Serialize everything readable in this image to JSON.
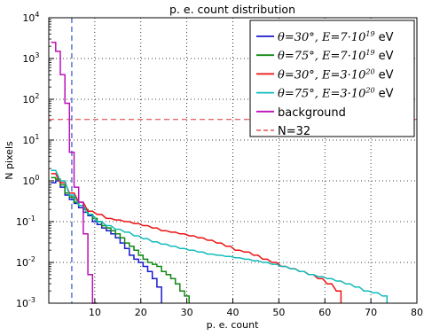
{
  "chart_data": {
    "type": "line",
    "title": "p. e. count distribution",
    "xlabel": "p. e. count",
    "ylabel": "N pixels",
    "xlim": [
      0,
      80
    ],
    "ylim_log10": [
      -3,
      4
    ],
    "y_scale": "log",
    "grid": true,
    "legend_position": "top-right",
    "x_ticks": [
      10,
      20,
      30,
      40,
      50,
      60,
      70,
      80
    ],
    "x_tick_labels": [
      "10",
      "20",
      "30",
      "40",
      "50",
      "60",
      "70",
      "80"
    ],
    "y_ticks_log10": [
      -3,
      -2,
      -1,
      0,
      1,
      2,
      3,
      4
    ],
    "y_tick_labels": [
      {
        "base": "10",
        "exp": "-3"
      },
      {
        "base": "10",
        "exp": "-2"
      },
      {
        "base": "10",
        "exp": "-1"
      },
      {
        "base": "10",
        "exp": "0"
      },
      {
        "base": "10",
        "exp": "1"
      },
      {
        "base": "10",
        "exp": "2"
      },
      {
        "base": "10",
        "exp": "3"
      },
      {
        "base": "10",
        "exp": "4"
      }
    ],
    "threshold_line": {
      "y": 32,
      "label": "N=32",
      "color": "#dd3333"
    },
    "vertical_line": {
      "x": 5,
      "color": "#3355cc"
    },
    "series": [
      {
        "label_parts": {
          "theta": "θ=30°",
          "sep": ", ",
          "energy": "E=7·10",
          "energy_exp": "19",
          "unit": " eV"
        },
        "color": "#1a1acc",
        "x": [
          1,
          2,
          3,
          4,
          5,
          6,
          7,
          8,
          9,
          10,
          11,
          12,
          13,
          14,
          15,
          16,
          17,
          18,
          19,
          20,
          21,
          22,
          23,
          24
        ],
        "y": [
          0.9,
          1.0,
          0.7,
          0.45,
          0.35,
          0.28,
          0.22,
          0.17,
          0.14,
          0.1,
          0.085,
          0.07,
          0.06,
          0.05,
          0.04,
          0.03,
          0.022,
          0.015,
          0.012,
          0.01,
          0.008,
          0.006,
          0.004,
          0.0025
        ]
      },
      {
        "label_parts": {
          "theta": "θ=75°",
          "sep": ", ",
          "energy": "E=7·10",
          "energy_exp": "19",
          "unit": " eV"
        },
        "color": "#118811",
        "x": [
          1,
          2,
          3,
          4,
          5,
          6,
          7,
          8,
          9,
          10,
          11,
          12,
          13,
          14,
          15,
          16,
          17,
          18,
          19,
          20,
          21,
          22,
          23,
          24,
          25,
          26,
          27,
          28,
          29,
          30
        ],
        "y": [
          1.2,
          1.1,
          0.8,
          0.5,
          0.4,
          0.3,
          0.25,
          0.2,
          0.15,
          0.12,
          0.1,
          0.08,
          0.07,
          0.06,
          0.05,
          0.04,
          0.03,
          0.025,
          0.02,
          0.015,
          0.012,
          0.01,
          0.009,
          0.008,
          0.006,
          0.005,
          0.004,
          0.003,
          0.002,
          0.0015
        ]
      },
      {
        "label_parts": {
          "theta": "θ=30°",
          "sep": ", ",
          "energy": "E=3·10",
          "energy_exp": "20",
          "unit": " eV"
        },
        "color": "#ee1111",
        "x": [
          1,
          3,
          5,
          7,
          9,
          11,
          13,
          15,
          17,
          19,
          21,
          23,
          25,
          27,
          29,
          31,
          33,
          35,
          37,
          39,
          41,
          43,
          45,
          47,
          49,
          51,
          53,
          55,
          57,
          59,
          61,
          63
        ],
        "y": [
          1.5,
          0.9,
          0.5,
          0.3,
          0.18,
          0.15,
          0.12,
          0.11,
          0.1,
          0.09,
          0.08,
          0.07,
          0.06,
          0.055,
          0.05,
          0.045,
          0.04,
          0.035,
          0.03,
          0.025,
          0.02,
          0.018,
          0.015,
          0.012,
          0.01,
          0.008,
          0.007,
          0.006,
          0.005,
          0.004,
          0.003,
          0.002
        ]
      },
      {
        "label_parts": {
          "theta": "θ=75°",
          "sep": ", ",
          "energy": "E=3·10",
          "energy_exp": "20",
          "unit": " eV"
        },
        "color": "#11bbbb",
        "x": [
          1,
          3,
          5,
          7,
          9,
          11,
          13,
          15,
          17,
          19,
          21,
          23,
          25,
          27,
          29,
          31,
          33,
          35,
          37,
          39,
          41,
          43,
          45,
          47,
          49,
          51,
          53,
          55,
          57,
          59,
          61,
          63,
          65,
          67,
          69,
          71,
          73
        ],
        "y": [
          1.8,
          1.0,
          0.45,
          0.25,
          0.15,
          0.1,
          0.08,
          0.065,
          0.055,
          0.045,
          0.038,
          0.032,
          0.028,
          0.025,
          0.022,
          0.02,
          0.018,
          0.016,
          0.015,
          0.014,
          0.013,
          0.012,
          0.011,
          0.01,
          0.009,
          0.008,
          0.007,
          0.006,
          0.005,
          0.0045,
          0.004,
          0.0035,
          0.003,
          0.0025,
          0.002,
          0.0018,
          0.0015
        ]
      },
      {
        "label": "background",
        "color": "#bb11bb",
        "x": [
          1,
          2,
          3,
          4,
          5,
          6,
          7,
          8,
          9,
          10
        ],
        "y": [
          2500,
          1500,
          400,
          80,
          5,
          0.7,
          0.3,
          0.05,
          0.005,
          0.001
        ]
      }
    ]
  }
}
